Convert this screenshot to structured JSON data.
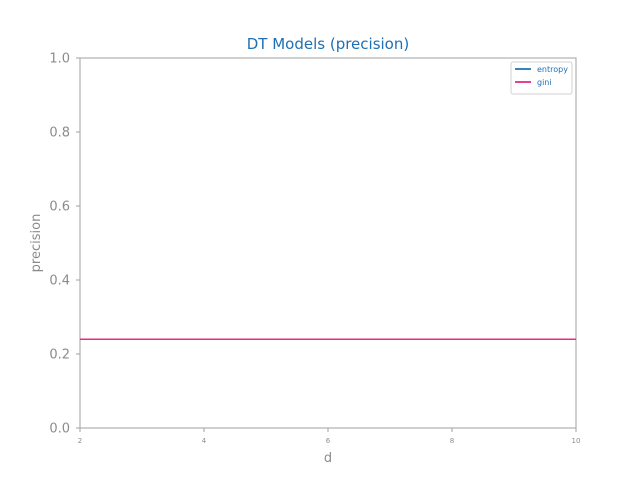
{
  "chart_data": {
    "type": "line",
    "title": "DT Models (precision)",
    "xlabel": "d",
    "ylabel": "precision",
    "x": [
      2,
      4,
      6,
      8,
      10
    ],
    "xlim": [
      2,
      10
    ],
    "ylim": [
      0,
      1
    ],
    "xticks": [
      "2",
      "4",
      "6",
      "8",
      "10"
    ],
    "yticks": [
      "0.0",
      "0.2",
      "0.4",
      "0.6",
      "0.8",
      "1.0"
    ],
    "grid": false,
    "legend_position": "top-right",
    "series": [
      {
        "name": "entropy",
        "values": [
          0.24,
          0.24,
          0.24,
          0.24,
          0.24
        ],
        "color": "#1f77b4"
      },
      {
        "name": "gini",
        "values": [
          0.24,
          0.24,
          0.24,
          0.24,
          0.24
        ],
        "color": "#e7298a"
      }
    ],
    "colors": {
      "title": "#1f6fb4",
      "axis": "#a0a0a0",
      "text": "#8c8c8c",
      "legend_text": "#1f6fb4"
    }
  }
}
